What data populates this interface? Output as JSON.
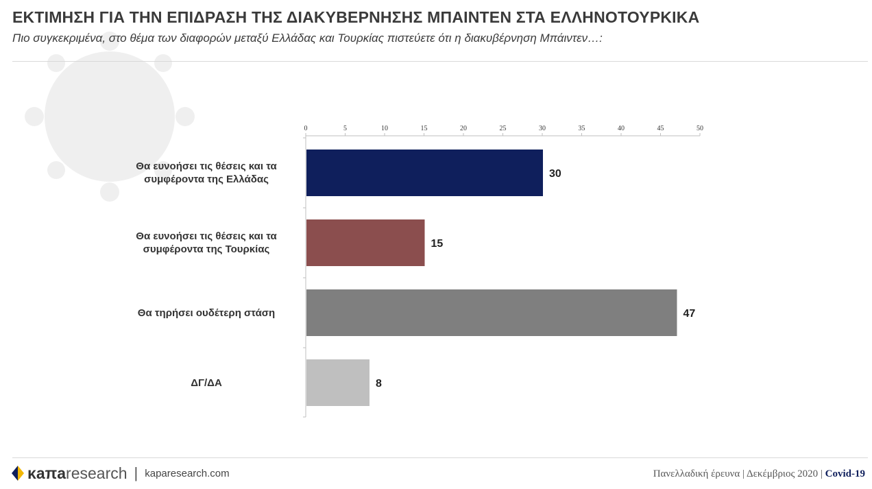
{
  "header": {
    "title": "ΕΚΤΙΜΗΣΗ ΓΙΑ ΤΗΝ ΕΠΙΔΡΑΣΗ ΤΗΣ ΔΙΑΚΥΒΕΡΝΗΣΗΣ ΜΠΑΙΝΤΕΝ ΣΤΑ ΕΛΛΗΝΟΤΟΥΡΚΙΚΑ",
    "subtitle": "Πιο συγκεκριμένα, στο θέμα των διαφορών μεταξύ Ελλάδας και Τουρκίας πιστεύετε ότι η διακυβέρνηση Μπάιντεν…:"
  },
  "chart_data": {
    "type": "bar",
    "orientation": "horizontal",
    "categories": [
      "Θα ευνοήσει τις θέσεις και τα συμφέροντα της Ελλάδας",
      "Θα ευνοήσει τις θέσεις και τα συμφέροντα της Τουρκίας",
      "Θα τηρήσει ουδέτερη στάση",
      "ΔΓ/ΔΑ"
    ],
    "values": [
      30,
      15,
      47,
      8
    ],
    "colors": [
      "#0f1f5c",
      "#8b4e4e",
      "#7f7f7f",
      "#bfbfbf"
    ],
    "xlim": [
      0,
      50
    ],
    "ticks": [
      0,
      5,
      10,
      15,
      20,
      25,
      30,
      35,
      40,
      45,
      50
    ],
    "axis_position": "top",
    "grid": false
  },
  "footer": {
    "brand_kapa": "κaπa",
    "brand_research": "research",
    "separator": "|",
    "site": "kaparesearch.com",
    "survey": "Πανελλαδική έρευνα | Δεκέμβριος 2020 | ",
    "tag": "Covid-19"
  }
}
